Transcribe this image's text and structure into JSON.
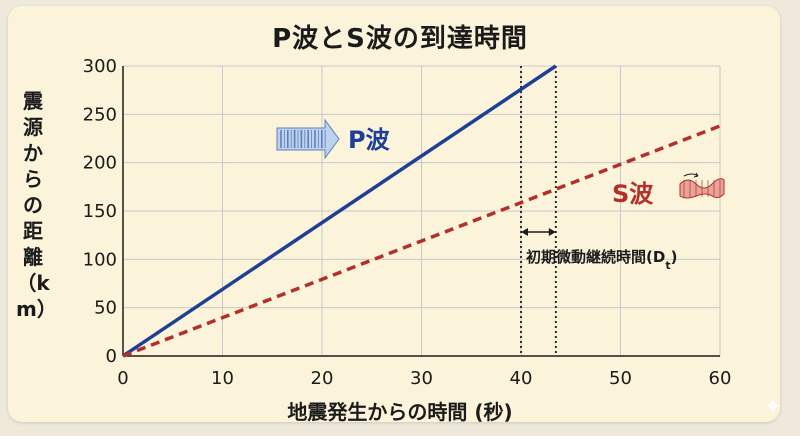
{
  "title": "P波とS波の到達時間",
  "ylabel": "震源からの距離（km）",
  "xlabel": "地震発生からの時間 (秒)",
  "colors": {
    "p_wave": "#1e3f96",
    "s_wave": "#b3302a",
    "grid": "#c8c8c8",
    "background": "#fbf4da"
  },
  "annotation": {
    "label": "初期微動継続時間",
    "paren_open": "(",
    "symbol": "D",
    "subscript": "t",
    "paren_close": ")",
    "x_start": 40,
    "x_end": 43.5
  },
  "icons": {
    "p_wave_icon": "striped-arrow-icon",
    "s_wave_icon": "wavy-ribbon-icon",
    "corner": "sparkle-icon"
  },
  "chart_data": {
    "type": "line",
    "title": "P波とS波の到達時間",
    "xlabel": "地震発生からの時間 (秒)",
    "ylabel": "震源からの距離（km）",
    "xlim": [
      0,
      60
    ],
    "ylim": [
      0,
      300
    ],
    "xticks": [
      0,
      10,
      20,
      30,
      40,
      50,
      60
    ],
    "yticks": [
      0,
      50,
      100,
      150,
      200,
      250,
      300
    ],
    "grid": true,
    "series": [
      {
        "name": "P波",
        "style": "solid",
        "color": "#1e3f96",
        "x": [
          0,
          43.5
        ],
        "y": [
          0,
          300
        ]
      },
      {
        "name": "S波",
        "style": "dashed",
        "color": "#b3302a",
        "x": [
          0,
          60
        ],
        "y": [
          0,
          238
        ]
      }
    ]
  }
}
